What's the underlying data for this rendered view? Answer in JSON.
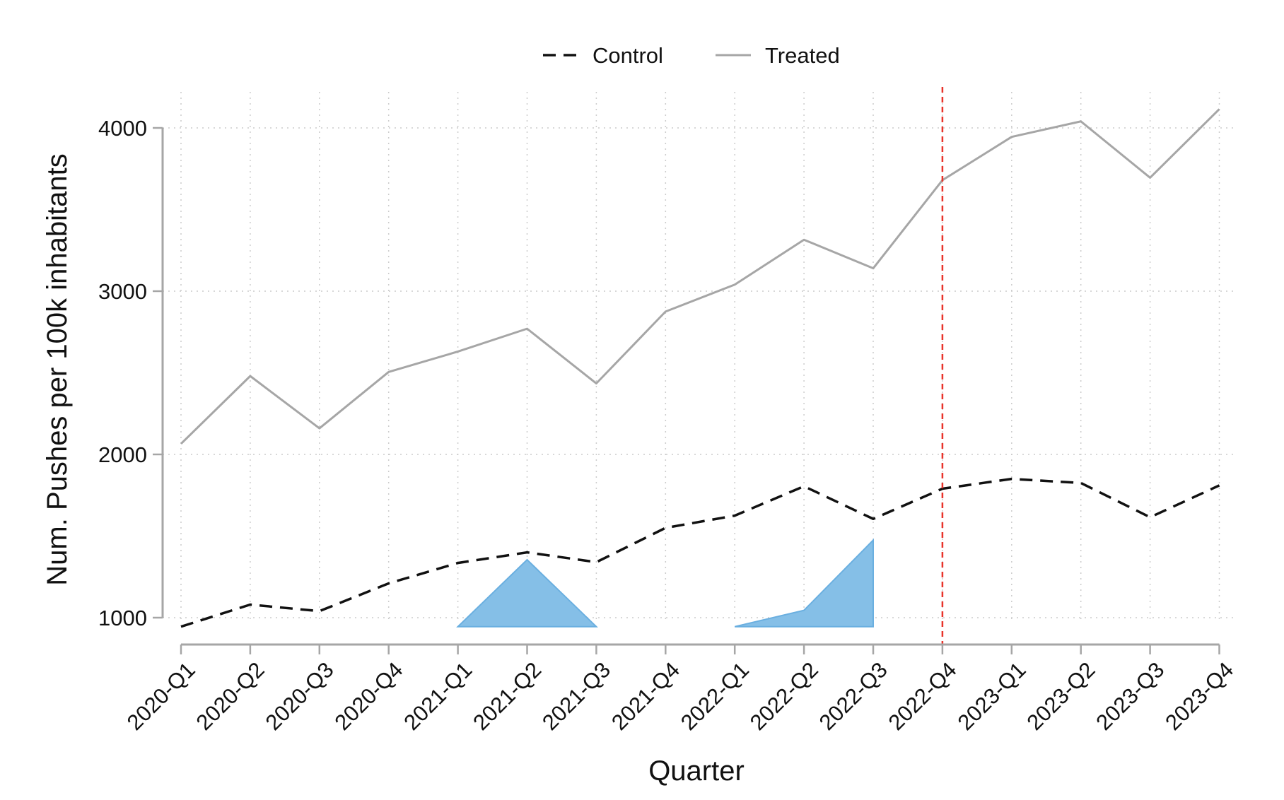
{
  "chart_data": {
    "type": "line",
    "title": "",
    "xlabel": "Quarter",
    "ylabel": "Num. Pushes per 100k inhabitants",
    "categories": [
      "2020-Q1",
      "2020-Q2",
      "2020-Q3",
      "2020-Q4",
      "2021-Q1",
      "2021-Q2",
      "2021-Q3",
      "2021-Q4",
      "2022-Q1",
      "2022-Q2",
      "2022-Q3",
      "2022-Q4",
      "2023-Q1",
      "2023-Q2",
      "2023-Q3",
      "2023-Q4"
    ],
    "y_ticks": [
      1000,
      2000,
      3000,
      4000
    ],
    "ylim": [
      840,
      4250
    ],
    "grid": true,
    "legend_position": "top-center",
    "series": [
      {
        "name": "Control",
        "style": "dashed",
        "color": "#111111",
        "values": [
          945,
          1080,
          1040,
          1210,
          1335,
          1400,
          1340,
          1550,
          1625,
          1805,
          1605,
          1790,
          1850,
          1825,
          1615,
          1810
        ]
      },
      {
        "name": "Treated",
        "style": "solid",
        "color": "#a6a6a6",
        "values": [
          2065,
          2480,
          2160,
          2505,
          2630,
          2770,
          2435,
          2875,
          3040,
          3315,
          3140,
          3680,
          3945,
          4040,
          3695,
          4115
        ]
      }
    ],
    "reference_line": {
      "category": "2022-Q4",
      "color": "#e8332a",
      "style": "dashed"
    },
    "shaded_regions": [
      {
        "color": "#85bfe7",
        "points": [
          [
            "2021-Q1",
            945
          ],
          [
            "2021-Q2",
            1355
          ],
          [
            "2021-Q3",
            945
          ]
        ]
      },
      {
        "color": "#85bfe7",
        "points": [
          [
            "2022-Q1",
            945
          ],
          [
            "2022-Q2",
            1045
          ],
          [
            "2022-Q3",
            1475
          ],
          [
            "2022-Q3",
            945
          ]
        ]
      }
    ]
  }
}
